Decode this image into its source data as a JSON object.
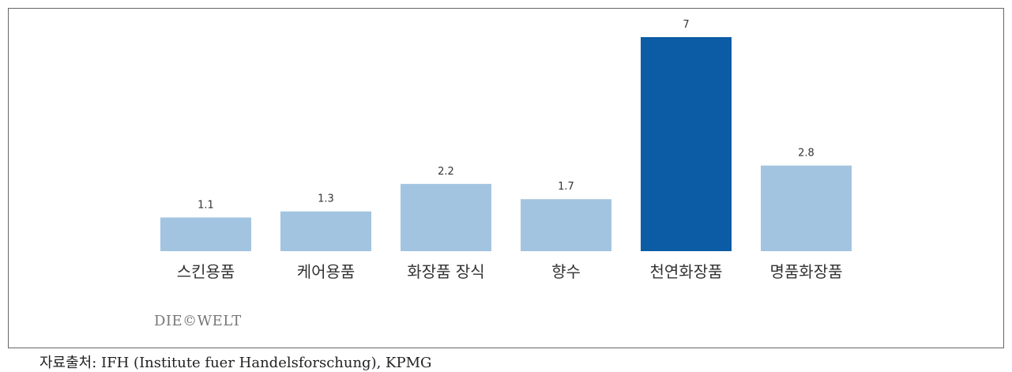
{
  "chart_data": {
    "type": "bar",
    "categories": [
      "스킨용품",
      "케어용품",
      "화장품 장식",
      "향수",
      "천연화장품",
      "명품화장품"
    ],
    "values": [
      1.1,
      1.3,
      2.2,
      1.7,
      7,
      2.8
    ],
    "colors": [
      "#a3c4e0",
      "#a3c4e0",
      "#a3c4e0",
      "#a3c4e0",
      "#0b5ca5",
      "#a3c4e0"
    ],
    "logo": "DIE©WELT",
    "source": "자료출처: IFH (Institute fuer Handelsforschung), KPMG"
  }
}
